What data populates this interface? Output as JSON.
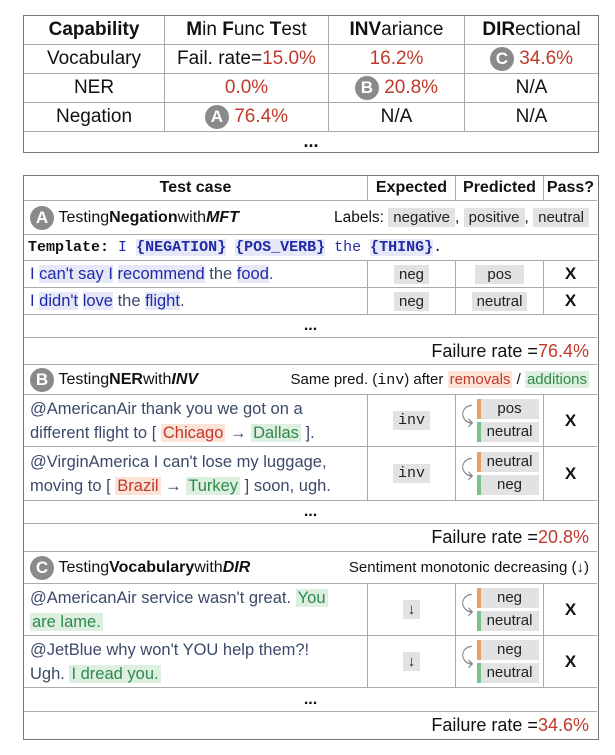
{
  "summary": {
    "headers": [
      "Capability",
      "Min Func Test",
      "INVariance",
      "DIRectional"
    ],
    "rows": [
      {
        "cap": "Vocabulary",
        "mft": "Fail. rate=15.0%",
        "inv": "16.2%",
        "dir": "34.6%"
      },
      {
        "cap": "NER",
        "mft": "0.0%",
        "inv": "20.8%",
        "dir": "N/A"
      },
      {
        "cap": "Negation",
        "mft": "76.4%",
        "inv": "N/A",
        "dir": "N/A"
      }
    ],
    "dots": "...",
    "badges": {
      "a": "A",
      "b": "B",
      "c": "C"
    }
  },
  "detail": {
    "headers": {
      "test_case": "Test case",
      "expected": "Expected",
      "predicted": "Predicted",
      "pass": "Pass?"
    },
    "sections": [
      {
        "badge": "A",
        "title_pre": "Testing ",
        "title_cap": "Negation",
        "title_mid": " with ",
        "title_type": "MFT",
        "note_pre": "Labels: ",
        "labels": [
          "negative",
          "positive",
          "neutral"
        ],
        "template_label": "Template:",
        "template_parts": [
          "I",
          "{NEGATION}",
          "{POS_VERB}",
          "the",
          "{THING}",
          "."
        ],
        "cases": [
          {
            "text": [
              "I ",
              "can't say I",
              " ",
              "recommend",
              " the ",
              "food",
              "."
            ],
            "expected": "neg",
            "predicted": "pos",
            "pass": "X"
          },
          {
            "text": [
              "I ",
              "didn't",
              " ",
              "love",
              " the ",
              "flight",
              "."
            ],
            "expected": "neg",
            "predicted": "neutral",
            "pass": "X"
          }
        ],
        "dots": "...",
        "failure_label": "Failure rate = ",
        "failure_rate": "76.4%"
      },
      {
        "badge": "B",
        "title_pre": "Testing ",
        "title_cap": "NER",
        "title_mid": " with ",
        "title_type": "INV",
        "note": [
          "Same pred. (",
          "inv",
          ") after ",
          "removals",
          " / ",
          "additions"
        ],
        "cases": [
          {
            "text": [
              "@AmericanAir thank you we got on a",
              "different flight to [ ",
              "Chicago",
              " → ",
              "Dallas",
              " ]."
            ],
            "expected": "inv",
            "predicted": [
              "pos",
              "neutral"
            ],
            "pass": "X"
          },
          {
            "text": [
              "@VirginAmerica I can't lose my luggage,",
              "moving to [ ",
              "Brazil",
              " → ",
              "Turkey",
              " ] soon, ugh."
            ],
            "expected": "inv",
            "predicted": [
              "neutral",
              "neg"
            ],
            "pass": "X"
          }
        ],
        "dots": "...",
        "failure_label": "Failure rate = ",
        "failure_rate": "20.8%"
      },
      {
        "badge": "C",
        "title_pre": "Testing ",
        "title_cap": "Vocabulary",
        "title_mid": " with ",
        "title_type": "DIR",
        "note": "Sentiment monotonic decreasing (↓)",
        "cases": [
          {
            "text": [
              "@AmericanAir service wasn't great. ",
              "You",
              "are lame."
            ],
            "expected": "↓",
            "predicted": [
              "neg",
              "neutral"
            ],
            "pass": "X"
          },
          {
            "text": [
              "@JetBlue why won't YOU help them?!",
              "Ugh. ",
              "I dread you."
            ],
            "expected": "↓",
            "predicted": [
              "neg",
              "neutral"
            ],
            "pass": "X"
          }
        ],
        "dots": "...",
        "failure_label": "Failure rate = ",
        "failure_rate": "34.6%"
      }
    ]
  }
}
